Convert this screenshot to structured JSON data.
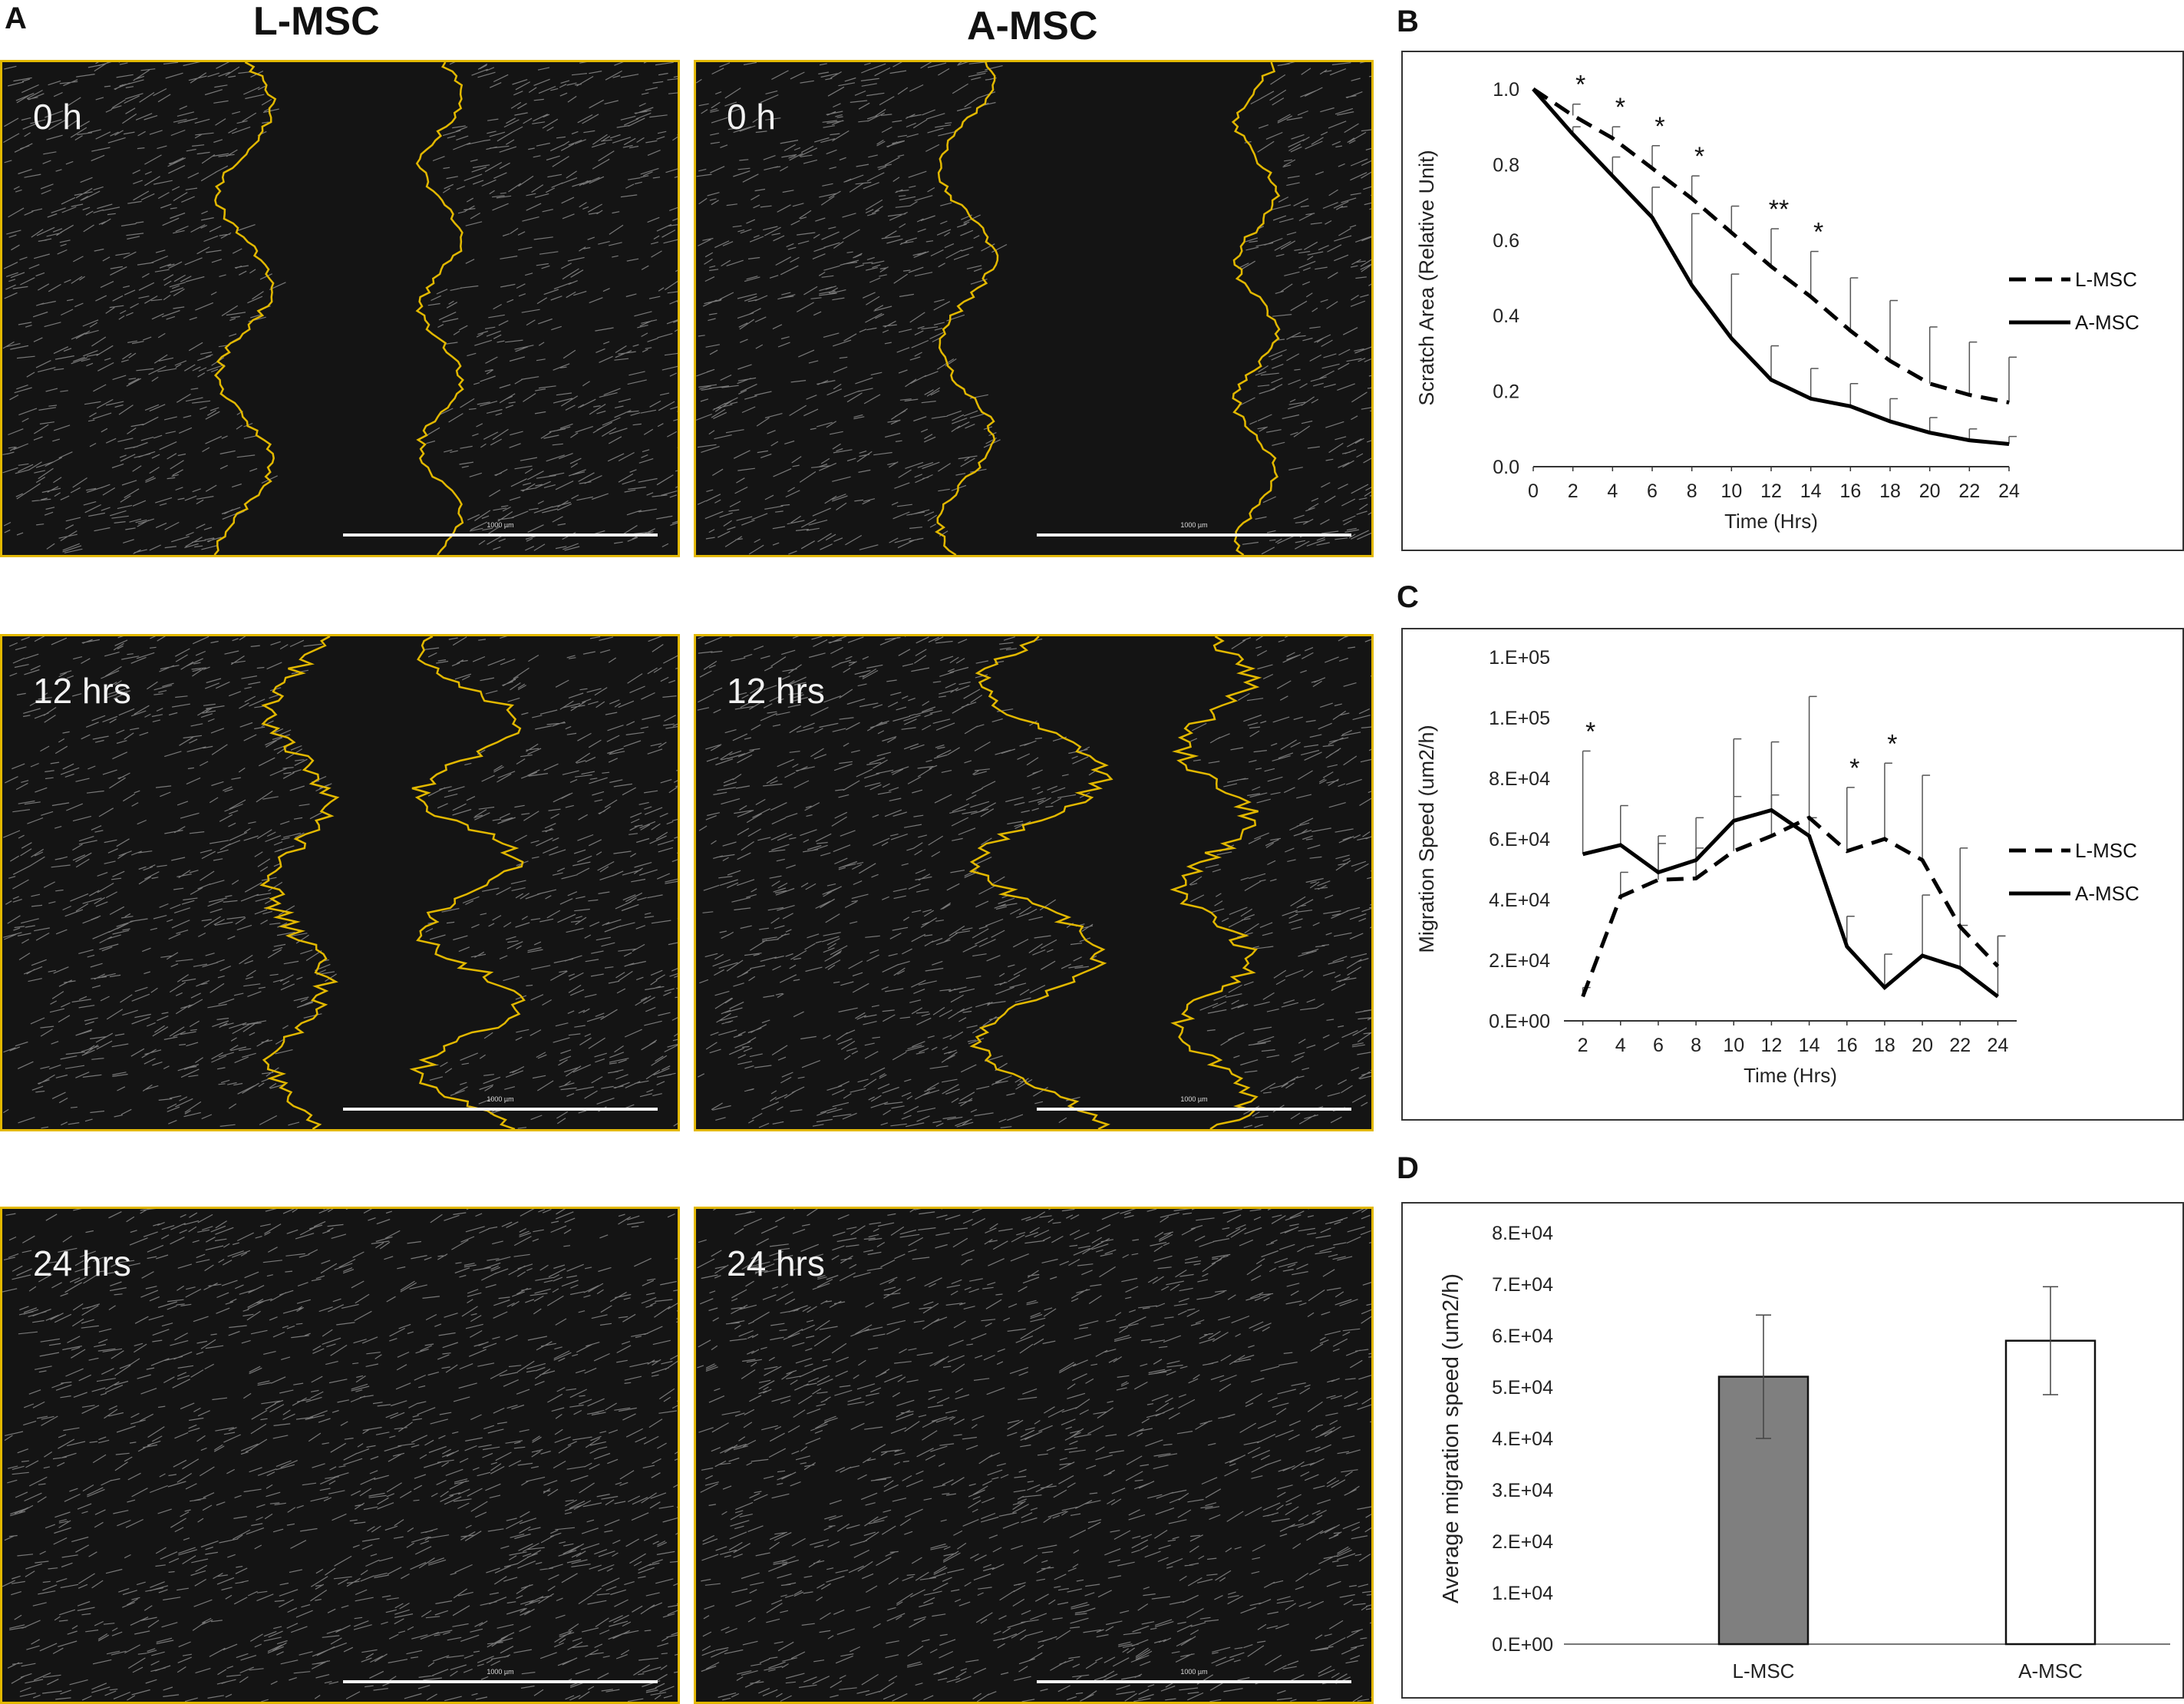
{
  "panel_labels": {
    "a": "A",
    "b": "B",
    "c": "C",
    "d": "D"
  },
  "panel_a": {
    "columns": [
      "L-MSC",
      "A-MSC"
    ],
    "timepoints": [
      "0 h",
      "12 hrs",
      "24 hrs"
    ],
    "scale_label": "1000 µm"
  },
  "colors": {
    "outline": "#e2b800",
    "l_msc_bar": "#7f7f7f",
    "a_msc_bar": "#ffffff",
    "line": "#000000"
  },
  "chart_data": [
    {
      "id": "B",
      "type": "line",
      "xlabel": "Time (Hrs)",
      "ylabel": "Scratch Area (Relative Unit)",
      "x": [
        0,
        2,
        4,
        6,
        8,
        10,
        12,
        14,
        16,
        18,
        20,
        22,
        24
      ],
      "ylim": [
        0,
        1.0
      ],
      "yticks": [
        "0.0",
        "0.2",
        "0.4",
        "0.6",
        "0.8",
        "1.0"
      ],
      "series": [
        {
          "name": "L-MSC",
          "style": "dashed",
          "values": [
            1.0,
            0.93,
            0.87,
            0.79,
            0.71,
            0.62,
            0.53,
            0.45,
            0.36,
            0.28,
            0.22,
            0.19,
            0.17
          ],
          "err": [
            0,
            0.03,
            0.03,
            0.06,
            0.06,
            0.07,
            0.1,
            0.12,
            0.14,
            0.16,
            0.15,
            0.14,
            0.12
          ]
        },
        {
          "name": "A-MSC",
          "style": "solid",
          "values": [
            1.0,
            0.88,
            0.77,
            0.66,
            0.48,
            0.34,
            0.23,
            0.18,
            0.16,
            0.12,
            0.09,
            0.07,
            0.06
          ],
          "err": [
            0,
            0.02,
            0.05,
            0.08,
            0.19,
            0.17,
            0.09,
            0.08,
            0.06,
            0.06,
            0.04,
            0.03,
            0.02
          ]
        }
      ],
      "annotations": [
        {
          "x": 2,
          "text": "*"
        },
        {
          "x": 4,
          "text": "*"
        },
        {
          "x": 6,
          "text": "*"
        },
        {
          "x": 8,
          "text": "*"
        },
        {
          "x": 12,
          "text": "**"
        },
        {
          "x": 14,
          "text": "*"
        }
      ],
      "legend": "right"
    },
    {
      "id": "C",
      "type": "line",
      "xlabel": "Time (Hrs)",
      "ylabel": "Migration Speed (um2/h)",
      "x": [
        2,
        4,
        6,
        8,
        10,
        12,
        14,
        16,
        18,
        20,
        22,
        24
      ],
      "ylim": [
        0,
        120000
      ],
      "yticks": [
        "0.E+00",
        "2.E+04",
        "4.E+04",
        "6.E+04",
        "8.E+04",
        "1.E+05",
        "1.E+05"
      ],
      "series": [
        {
          "name": "L-MSC",
          "style": "dashed",
          "values": [
            8000,
            41000,
            46500,
            47000,
            56000,
            61000,
            67000,
            56000,
            60000,
            53000,
            31000,
            18000
          ],
          "err": [
            3000,
            8000,
            12000,
            10000,
            37000,
            31000,
            40000,
            21000,
            25000,
            28000,
            26000,
            10000
          ]
        },
        {
          "name": "A-MSC",
          "style": "solid",
          "values": [
            55000,
            58000,
            49000,
            53000,
            66000,
            69500,
            61000,
            24500,
            11000,
            21500,
            17500,
            8000
          ],
          "err": [
            34000,
            13000,
            12000,
            14000,
            8000,
            5000,
            6000,
            10000,
            11000,
            20000,
            14000,
            20000
          ]
        }
      ],
      "annotations": [
        {
          "x": 2,
          "text": "*"
        },
        {
          "x": 16,
          "text": "*"
        },
        {
          "x": 18,
          "text": "*"
        }
      ],
      "legend": "right"
    },
    {
      "id": "D",
      "type": "bar",
      "ylabel": "Average migration speed (um2/h)",
      "categories": [
        "L-MSC",
        "A-MSC"
      ],
      "values": [
        52000,
        59000
      ],
      "err": [
        12000,
        10500
      ],
      "ylim": [
        0,
        80000
      ],
      "yticks": [
        "0.E+00",
        "1.E+04",
        "2.E+04",
        "3.E+04",
        "4.E+04",
        "5.E+04",
        "6.E+04",
        "7.E+04",
        "8.E+04"
      ]
    }
  ]
}
